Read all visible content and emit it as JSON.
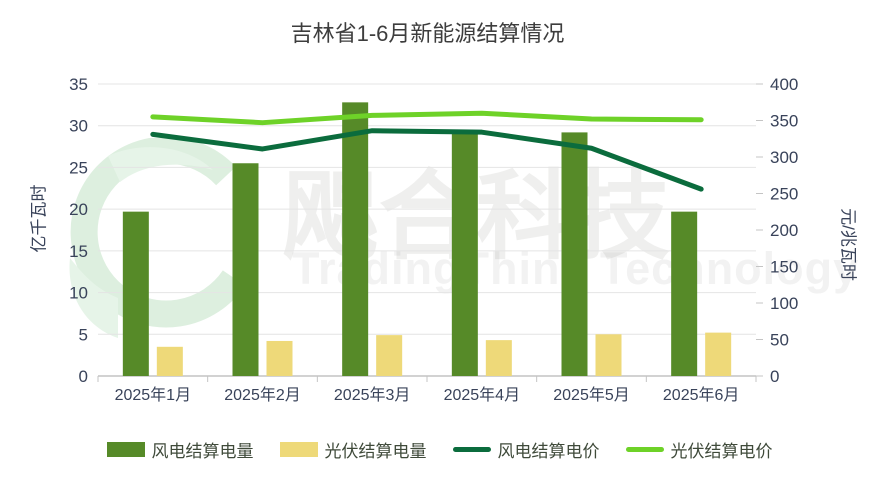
{
  "title": "吉林省1-6月新能源结算情况",
  "watermark": {
    "cn": "飔合科技",
    "en": "TradingThink Technology"
  },
  "chart_data": {
    "type": "bar+line",
    "title": "吉林省1-6月新能源结算情况",
    "categories": [
      "2025年1月",
      "2025年2月",
      "2025年3月",
      "2025年4月",
      "2025年5月",
      "2025年6月"
    ],
    "series": [
      {
        "key": "wind-volume",
        "name": "风电结算电量",
        "type": "bar",
        "axis": "left",
        "color": "#568a28",
        "values": [
          19.7,
          25.5,
          32.8,
          29.1,
          29.2,
          19.7
        ]
      },
      {
        "key": "solar-volume",
        "name": "光伏结算电量",
        "type": "bar",
        "axis": "left",
        "color": "#eed979",
        "values": [
          3.5,
          4.2,
          4.9,
          4.3,
          5.0,
          5.2
        ]
      },
      {
        "key": "wind-price",
        "name": "风电结算电价",
        "type": "line",
        "axis": "right",
        "color": "#0b6c3d",
        "values": [
          331,
          311,
          336,
          334,
          312,
          256
        ]
      },
      {
        "key": "solar-price",
        "name": "光伏结算电价",
        "type": "line",
        "axis": "right",
        "color": "#6ed228",
        "values": [
          355,
          347,
          357,
          360,
          352,
          351
        ]
      }
    ],
    "left_axis": {
      "name": "亿千瓦时",
      "min": 0,
      "max": 35,
      "ticks": [
        0,
        5,
        10,
        15,
        20,
        25,
        30,
        35
      ]
    },
    "right_axis": {
      "name": "元/兆瓦时",
      "min": 0,
      "max": 400,
      "ticks": [
        0,
        50,
        100,
        150,
        200,
        250,
        300,
        350,
        400
      ]
    },
    "grid": true,
    "legend_position": "bottom",
    "colors": {
      "grid_line": "#e4e4e4",
      "axis_line": "#c4c4c4",
      "tick_text": "#39435a",
      "legend_text": "#3f4a3a",
      "watermark_green": "#ddefdf"
    }
  }
}
